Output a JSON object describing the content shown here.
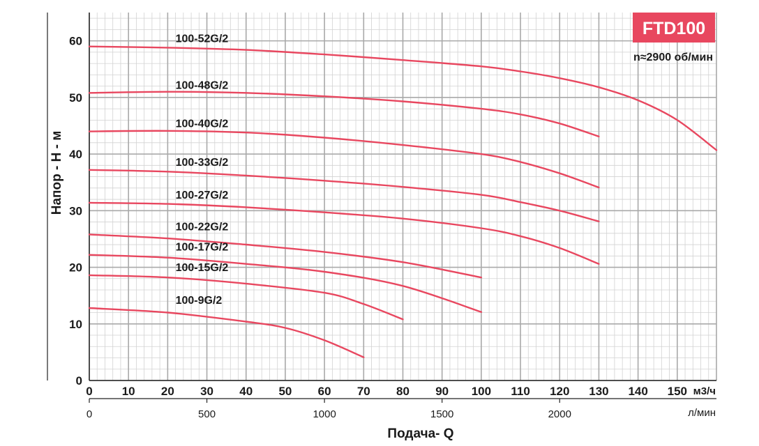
{
  "chart_data": {
    "type": "line",
    "title": "FTD100",
    "subtitle": "n≈2900 об/мин",
    "xlabel": "Подача- Q",
    "ylabel": "Напор - H - м",
    "x_unit": "м3/ч",
    "x2_unit": "л/мин",
    "xlim": [
      0,
      160
    ],
    "ylim": [
      0,
      65
    ],
    "x_ticks": [
      "0",
      "10",
      "20",
      "30",
      "40",
      "50",
      "60",
      "70",
      "80",
      "90",
      "100",
      "110",
      "120",
      "130",
      "140",
      "150"
    ],
    "x2_ticks": [
      "0",
      "500",
      "1000",
      "1500",
      "2000"
    ],
    "y_ticks": [
      "0",
      "10",
      "20",
      "30",
      "40",
      "50",
      "60"
    ],
    "grid": true,
    "accent_color": "#e8475f",
    "series": [
      {
        "name": "100-52G/2",
        "x": [
          0,
          20,
          40,
          60,
          80,
          100,
          110,
          120,
          130,
          140,
          150,
          160
        ],
        "y": [
          59,
          58.8,
          58.4,
          57.6,
          56.6,
          55.5,
          54.6,
          53.4,
          51.8,
          49.5,
          46,
          40.7
        ]
      },
      {
        "name": "100-48G/2",
        "x": [
          0,
          20,
          40,
          60,
          80,
          100,
          110,
          120,
          130
        ],
        "y": [
          50.8,
          51,
          50.8,
          50.2,
          49.3,
          48,
          47,
          45.4,
          43.1
        ]
      },
      {
        "name": "100-40G/2",
        "x": [
          0,
          20,
          40,
          60,
          80,
          100,
          110,
          120,
          130
        ],
        "y": [
          44,
          44.1,
          43.8,
          42.9,
          41.6,
          40,
          38.6,
          36.6,
          34.1
        ]
      },
      {
        "name": "100-33G/2",
        "x": [
          0,
          20,
          40,
          60,
          80,
          100,
          110,
          120,
          130
        ],
        "y": [
          37.2,
          36.9,
          36.2,
          35.3,
          34.2,
          32.8,
          31.5,
          30,
          28.1
        ]
      },
      {
        "name": "100-27G/2",
        "x": [
          0,
          20,
          40,
          60,
          80,
          100,
          110,
          120,
          130
        ],
        "y": [
          31.4,
          31.2,
          30.6,
          29.7,
          28.6,
          26.9,
          25.5,
          23.4,
          20.6
        ]
      },
      {
        "name": "100-22G/2",
        "x": [
          0,
          20,
          40,
          60,
          80,
          100
        ],
        "y": [
          25.8,
          25.1,
          24,
          22.7,
          20.9,
          18.2
        ]
      },
      {
        "name": "100-17G/2",
        "x": [
          0,
          20,
          40,
          60,
          80,
          100
        ],
        "y": [
          22.2,
          21.7,
          20.6,
          19.2,
          16.7,
          12.1
        ]
      },
      {
        "name": "100-15G/2",
        "x": [
          0,
          20,
          40,
          60,
          70,
          80
        ],
        "y": [
          18.6,
          18.2,
          17.1,
          15.5,
          13.5,
          10.8
        ]
      },
      {
        "name": "100-9G/2",
        "x": [
          0,
          20,
          40,
          50,
          60,
          70
        ],
        "y": [
          12.8,
          12,
          10.4,
          9.3,
          7.1,
          4.1
        ]
      }
    ]
  }
}
